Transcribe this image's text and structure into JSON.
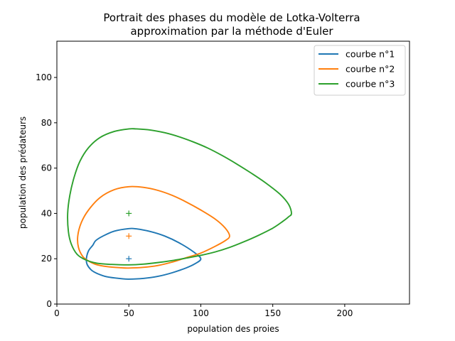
{
  "chart_data": {
    "type": "line",
    "title_lines": [
      "Portrait des phases du modèle de Lotka-Volterra",
      "approximation par la méthode d'Euler"
    ],
    "xlabel": "population des proies",
    "ylabel": "population des prédateurs",
    "xlim": [
      0,
      245
    ],
    "ylim": [
      0,
      116
    ],
    "xticks": [
      0,
      50,
      100,
      150,
      200
    ],
    "yticks": [
      0,
      20,
      40,
      60,
      80,
      100
    ],
    "grid": false,
    "legend_position": "top-right",
    "series": [
      {
        "name": "courbe n°1",
        "color": "#1f77b4",
        "start": [
          50,
          20
        ],
        "x": [
          100,
          95,
          85,
          75,
          65,
          55,
          50,
          40,
          32,
          27,
          25,
          22,
          20.5,
          21,
          24,
          28,
          35,
          45,
          50,
          60,
          70,
          80,
          90,
          96,
          100
        ],
        "y": [
          20,
          23,
          27,
          30,
          32,
          33.2,
          33.3,
          32.2,
          30,
          28,
          26,
          23.5,
          20,
          17.5,
          15,
          13.5,
          12,
          11.2,
          11,
          11.3,
          12.2,
          13.8,
          16,
          17.8,
          20
        ]
      },
      {
        "name": "courbe n°2",
        "color": "#ff7f0e",
        "start": [
          50,
          30
        ],
        "x": [
          120,
          117,
          110,
          100,
          90,
          80,
          70,
          60,
          50,
          40,
          30,
          22,
          17,
          14.5,
          15,
          18,
          22,
          27,
          35,
          45,
          50,
          60,
          70,
          80,
          90,
          100,
          110,
          117,
          120
        ],
        "y": [
          30,
          33.5,
          37.5,
          41.5,
          45,
          48,
          50.2,
          51.5,
          51.8,
          50.5,
          47,
          41.5,
          36,
          30,
          25,
          21,
          19,
          17.5,
          16.5,
          16,
          15.9,
          16.2,
          17,
          18.5,
          20.5,
          22.5,
          25.5,
          28,
          30
        ]
      },
      {
        "name": "courbe n°3",
        "color": "#2ca02c",
        "start": [
          50,
          40
        ],
        "x": [
          163,
          161,
          155,
          145,
          135,
          125,
          115,
          105,
          95,
          85,
          75,
          65,
          55,
          50,
          40,
          30,
          22,
          16,
          12,
          9,
          7.5,
          8,
          10,
          14,
          20,
          28,
          38,
          50,
          60,
          70,
          80,
          90,
          100,
          110,
          120,
          130,
          140,
          150,
          157,
          161,
          163
        ],
        "y": [
          40,
          44,
          48.5,
          53.5,
          57.8,
          61.8,
          65.5,
          68.8,
          71.5,
          73.8,
          75.6,
          76.8,
          77.3,
          77.3,
          76.2,
          73.5,
          69,
          63,
          56,
          48,
          40,
          32,
          26.5,
          22,
          19.5,
          18,
          17.5,
          17.3,
          17.6,
          18.3,
          19.2,
          20.3,
          21.5,
          23,
          25,
          27.5,
          30.3,
          33.5,
          36.5,
          38.5,
          40
        ]
      }
    ]
  }
}
